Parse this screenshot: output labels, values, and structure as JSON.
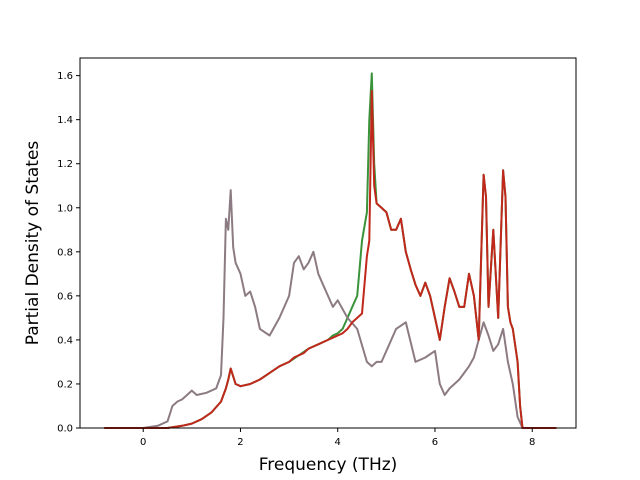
{
  "chart_data": {
    "type": "line",
    "xlabel": "Frequency (THz)",
    "ylabel": "Partial Density of States",
    "xlim": [
      -1.3,
      8.9
    ],
    "ylim": [
      0.0,
      1.68
    ],
    "xticks": [
      "0",
      "2",
      "4",
      "6",
      "8"
    ],
    "xtick_values": [
      0,
      2,
      4,
      6,
      8
    ],
    "yticks": [
      "0.0",
      "0.2",
      "0.4",
      "0.6",
      "0.8",
      "1.0",
      "1.2",
      "1.4",
      "1.6"
    ],
    "ytick_values": [
      0.0,
      0.2,
      0.4,
      0.6,
      0.8,
      1.0,
      1.2,
      1.4,
      1.6
    ],
    "grid": false,
    "series": [
      {
        "color": "#3a923a",
        "x": [
          -0.8,
          0.0,
          0.5,
          0.8,
          1.0,
          1.2,
          1.4,
          1.6,
          1.7,
          1.75,
          1.8,
          1.9,
          2.0,
          2.2,
          2.4,
          2.6,
          2.8,
          3.0,
          3.2,
          3.4,
          3.6,
          3.8,
          3.9,
          4.0,
          4.1,
          4.2,
          4.3,
          4.4,
          4.5,
          4.6,
          4.65,
          4.7,
          4.75,
          4.8,
          4.9,
          5.0,
          5.1,
          5.2,
          5.3,
          5.4,
          5.5,
          5.6,
          5.7,
          5.8,
          5.9,
          6.0,
          6.1,
          6.2,
          6.3,
          6.4,
          6.5,
          6.6,
          6.7,
          6.8,
          6.9,
          7.0,
          7.05,
          7.1,
          7.2,
          7.3,
          7.4,
          7.45,
          7.5,
          7.55,
          7.6,
          7.7,
          7.75,
          7.8,
          8.0,
          8.5
        ],
        "y": [
          0.0,
          0.0,
          0.0,
          0.01,
          0.02,
          0.04,
          0.07,
          0.12,
          0.18,
          0.22,
          0.27,
          0.2,
          0.19,
          0.2,
          0.22,
          0.25,
          0.28,
          0.3,
          0.33,
          0.36,
          0.38,
          0.4,
          0.42,
          0.43,
          0.45,
          0.5,
          0.55,
          0.6,
          0.85,
          0.98,
          1.4,
          1.61,
          1.2,
          1.02,
          1.0,
          0.98,
          0.9,
          0.9,
          0.95,
          0.8,
          0.72,
          0.65,
          0.6,
          0.66,
          0.6,
          0.5,
          0.4,
          0.55,
          0.68,
          0.62,
          0.55,
          0.55,
          0.7,
          0.6,
          0.4,
          1.15,
          1.05,
          0.55,
          0.9,
          0.5,
          1.17,
          1.05,
          0.55,
          0.48,
          0.45,
          0.3,
          0.1,
          0.0,
          0.0,
          0.0
        ]
      },
      {
        "color": "#8c7b82",
        "x": [
          -0.8,
          0.0,
          0.3,
          0.5,
          0.6,
          0.7,
          0.8,
          0.9,
          1.0,
          1.1,
          1.3,
          1.5,
          1.6,
          1.65,
          1.7,
          1.75,
          1.8,
          1.85,
          1.9,
          2.0,
          2.1,
          2.2,
          2.3,
          2.4,
          2.6,
          2.8,
          3.0,
          3.1,
          3.2,
          3.3,
          3.4,
          3.5,
          3.6,
          3.7,
          3.8,
          3.9,
          4.0,
          4.2,
          4.4,
          4.6,
          4.7,
          4.8,
          4.9,
          5.0,
          5.2,
          5.4,
          5.6,
          5.8,
          6.0,
          6.1,
          6.2,
          6.3,
          6.4,
          6.5,
          6.6,
          6.7,
          6.8,
          6.9,
          7.0,
          7.1,
          7.2,
          7.3,
          7.4,
          7.5,
          7.6,
          7.7,
          7.8,
          8.0,
          8.5
        ],
        "y": [
          0.0,
          0.0,
          0.01,
          0.03,
          0.1,
          0.12,
          0.13,
          0.15,
          0.17,
          0.15,
          0.16,
          0.18,
          0.24,
          0.5,
          0.95,
          0.9,
          1.08,
          0.82,
          0.75,
          0.7,
          0.6,
          0.62,
          0.55,
          0.45,
          0.42,
          0.5,
          0.6,
          0.75,
          0.78,
          0.72,
          0.75,
          0.8,
          0.7,
          0.65,
          0.6,
          0.55,
          0.58,
          0.5,
          0.45,
          0.3,
          0.28,
          0.3,
          0.3,
          0.35,
          0.45,
          0.48,
          0.3,
          0.32,
          0.35,
          0.2,
          0.15,
          0.18,
          0.2,
          0.22,
          0.25,
          0.28,
          0.32,
          0.4,
          0.48,
          0.42,
          0.35,
          0.38,
          0.45,
          0.3,
          0.2,
          0.05,
          0.0,
          0.0,
          0.0
        ]
      },
      {
        "color": "#c0281c",
        "x": [
          -0.8,
          0.0,
          0.5,
          0.8,
          1.0,
          1.2,
          1.4,
          1.6,
          1.7,
          1.75,
          1.8,
          1.9,
          2.0,
          2.2,
          2.4,
          2.6,
          2.8,
          3.0,
          3.1,
          3.2,
          3.3,
          3.4,
          3.5,
          3.6,
          3.7,
          3.8,
          3.9,
          4.0,
          4.1,
          4.2,
          4.3,
          4.4,
          4.5,
          4.6,
          4.65,
          4.7,
          4.75,
          4.8,
          4.9,
          5.0,
          5.1,
          5.2,
          5.3,
          5.4,
          5.5,
          5.6,
          5.7,
          5.8,
          5.9,
          6.0,
          6.1,
          6.2,
          6.3,
          6.4,
          6.5,
          6.6,
          6.7,
          6.8,
          6.9,
          7.0,
          7.05,
          7.1,
          7.2,
          7.3,
          7.4,
          7.45,
          7.5,
          7.55,
          7.6,
          7.7,
          7.75,
          7.8,
          8.0,
          8.5
        ],
        "y": [
          0.0,
          0.0,
          0.0,
          0.01,
          0.02,
          0.04,
          0.07,
          0.12,
          0.18,
          0.22,
          0.27,
          0.2,
          0.19,
          0.2,
          0.22,
          0.25,
          0.28,
          0.3,
          0.32,
          0.33,
          0.34,
          0.36,
          0.37,
          0.38,
          0.39,
          0.4,
          0.41,
          0.42,
          0.43,
          0.45,
          0.48,
          0.5,
          0.52,
          0.78,
          0.85,
          1.53,
          1.1,
          1.02,
          1.0,
          0.98,
          0.9,
          0.9,
          0.95,
          0.8,
          0.72,
          0.65,
          0.6,
          0.66,
          0.6,
          0.5,
          0.4,
          0.55,
          0.68,
          0.62,
          0.55,
          0.55,
          0.7,
          0.6,
          0.4,
          1.15,
          1.05,
          0.55,
          0.9,
          0.5,
          1.17,
          1.05,
          0.55,
          0.48,
          0.45,
          0.3,
          0.1,
          0.0,
          0.0,
          0.0
        ]
      }
    ]
  }
}
